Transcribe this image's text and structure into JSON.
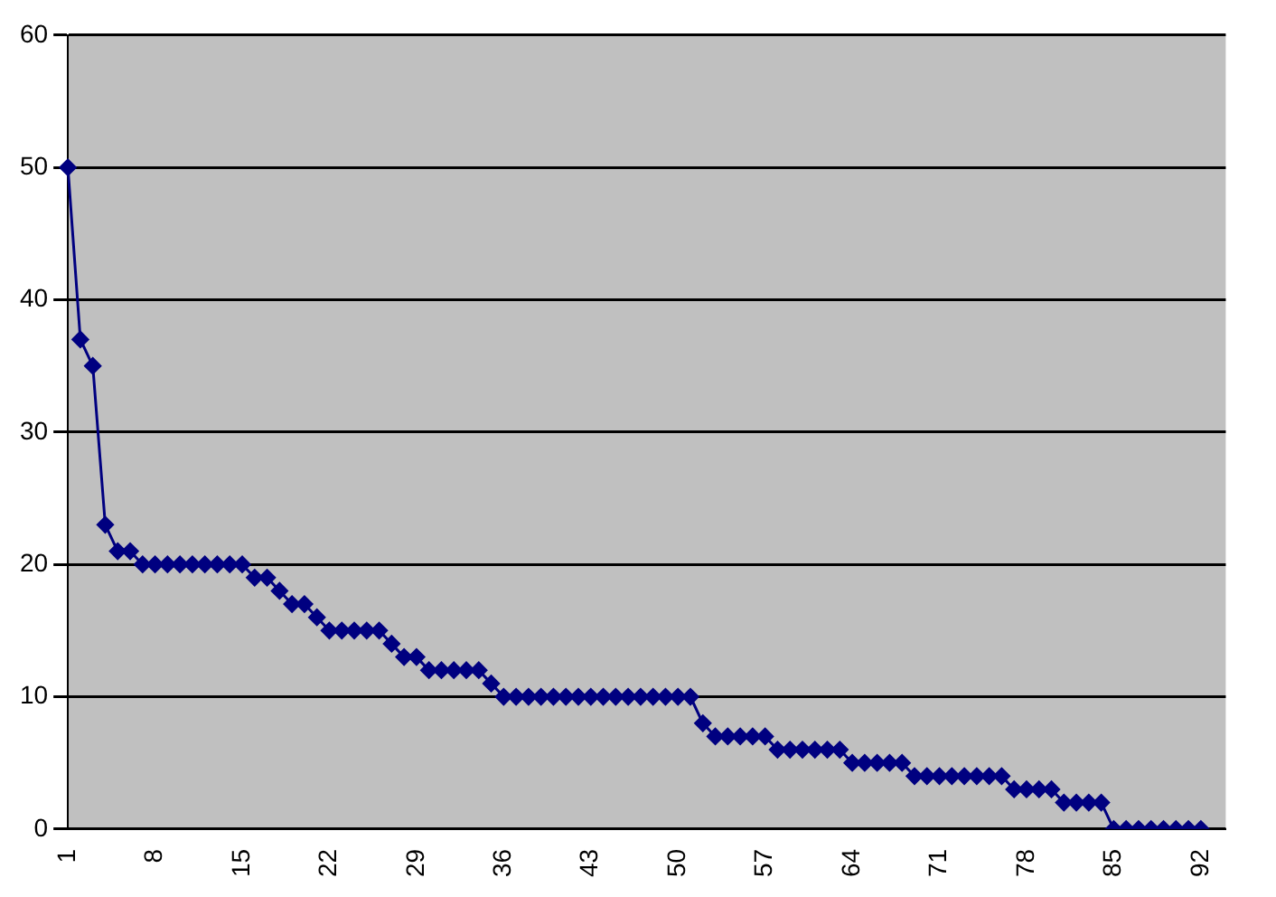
{
  "chart_data": {
    "type": "line",
    "categories": [
      "1",
      null,
      null,
      null,
      null,
      null,
      null,
      "8",
      null,
      null,
      null,
      null,
      null,
      null,
      "15",
      null,
      null,
      null,
      null,
      null,
      null,
      "22",
      null,
      null,
      null,
      null,
      null,
      null,
      "29",
      null,
      null,
      null,
      null,
      null,
      null,
      "36",
      null,
      null,
      null,
      null,
      null,
      null,
      "43",
      null,
      null,
      null,
      null,
      null,
      null,
      "50",
      null,
      null,
      null,
      null,
      null,
      null,
      "57",
      null,
      null,
      null,
      null,
      null,
      null,
      "64",
      null,
      null,
      null,
      null,
      null,
      null,
      "71",
      null,
      null,
      null,
      null,
      null,
      null,
      "78",
      null,
      null,
      null,
      null,
      null,
      null,
      "85",
      null,
      null,
      null,
      null,
      null,
      null,
      "92",
      null,
      null
    ],
    "series": [
      {
        "color": "#000080",
        "values": [
          50,
          37,
          35,
          23,
          21,
          21,
          20,
          20,
          20,
          20,
          20,
          20,
          20,
          20,
          20,
          19,
          19,
          18,
          17,
          17,
          16,
          15,
          15,
          15,
          15,
          15,
          14,
          13,
          13,
          12,
          12,
          12,
          12,
          12,
          11,
          10,
          10,
          10,
          10,
          10,
          10,
          10,
          10,
          10,
          10,
          10,
          10,
          10,
          10,
          10,
          10,
          8,
          7,
          7,
          7,
          7,
          7,
          6,
          6,
          6,
          6,
          6,
          6,
          5,
          5,
          5,
          5,
          5,
          4,
          4,
          4,
          4,
          4,
          4,
          4,
          4,
          3,
          3,
          3,
          3,
          2,
          2,
          2,
          2,
          0,
          0,
          0,
          0,
          0,
          0,
          0,
          0,
          null,
          null
        ]
      }
    ],
    "ylim": [
      0,
      60
    ],
    "yticks": [
      0,
      10,
      20,
      30,
      40,
      50,
      60
    ],
    "grid": "y",
    "marker": "diamond",
    "line_style": "solid",
    "legend": false
  }
}
